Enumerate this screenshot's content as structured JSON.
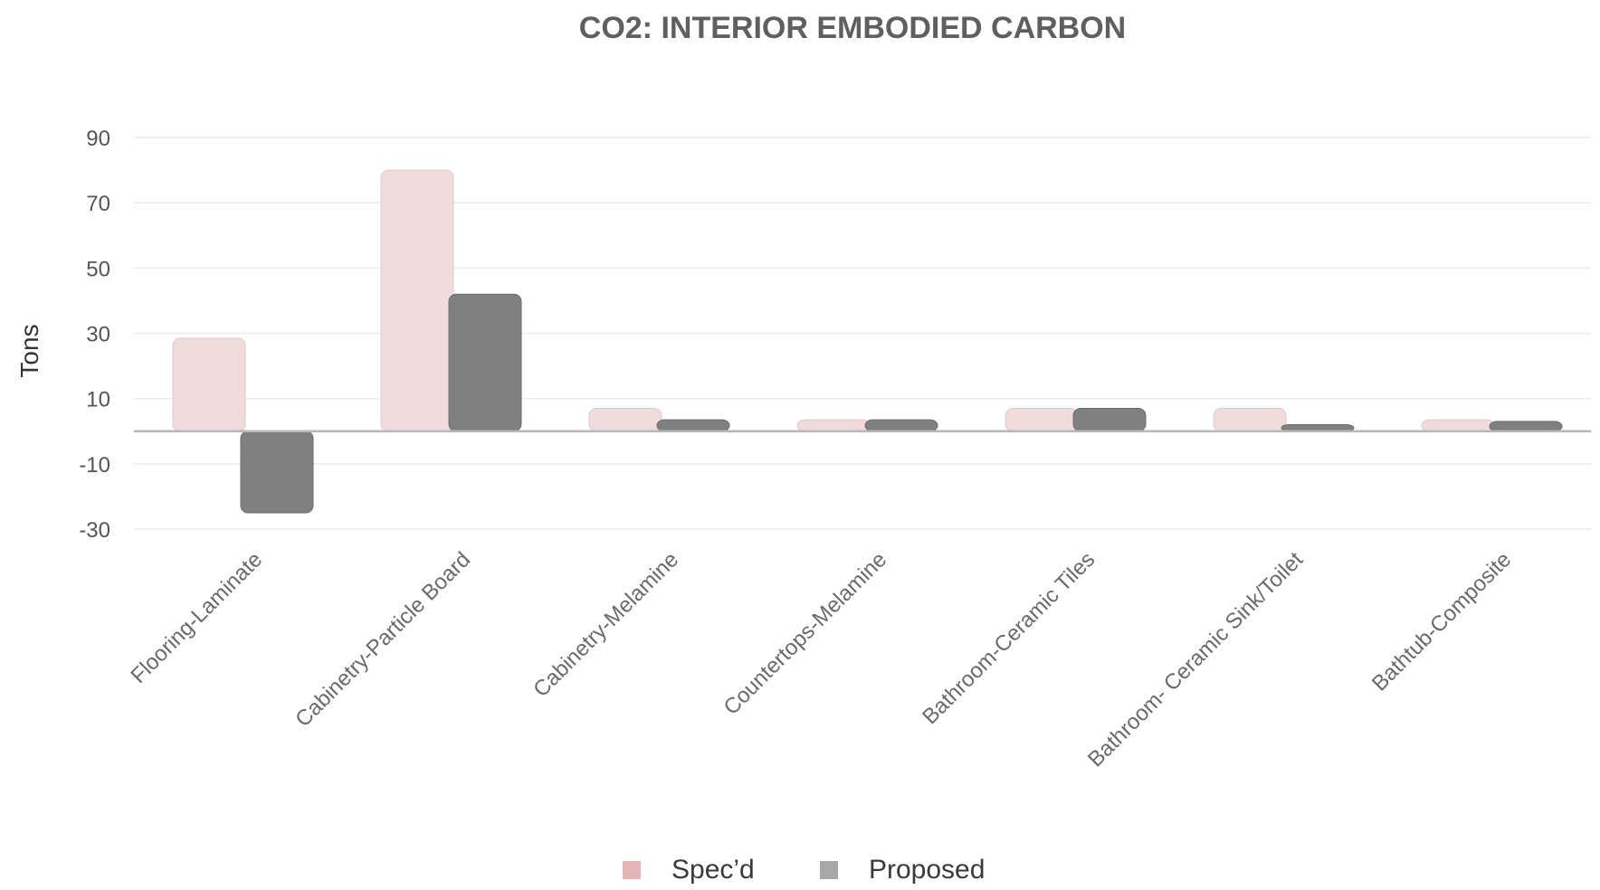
{
  "chart_data": {
    "type": "bar",
    "title": "CO2: INTERIOR EMBODIED CARBON",
    "xlabel": "",
    "ylabel": "Tons",
    "ylim": [
      -30,
      90
    ],
    "yticks": [
      90,
      70,
      50,
      30,
      10,
      -10,
      -30
    ],
    "grid": true,
    "legend_position": "bottom",
    "categories": [
      "Flooring-Laminate",
      "Cabinetry-Particle Board",
      "Cabinetry-Melamine",
      "Countertops-Melamine",
      "Bathroom-Ceramic Tiles",
      "Bathroom- Ceramic Sink/Toilet",
      "Bathtub-Composite"
    ],
    "series": [
      {
        "name": "Spec’d",
        "color": "#f0dcdd",
        "legend_color": "#e6b4b6",
        "values": [
          28.5,
          80,
          7,
          3.5,
          7,
          7,
          3.5
        ]
      },
      {
        "name": "Proposed",
        "color": "#808080",
        "legend_color": "#a8a8a8",
        "values": [
          -25,
          42,
          3.5,
          3.5,
          7,
          2,
          3
        ]
      }
    ]
  }
}
